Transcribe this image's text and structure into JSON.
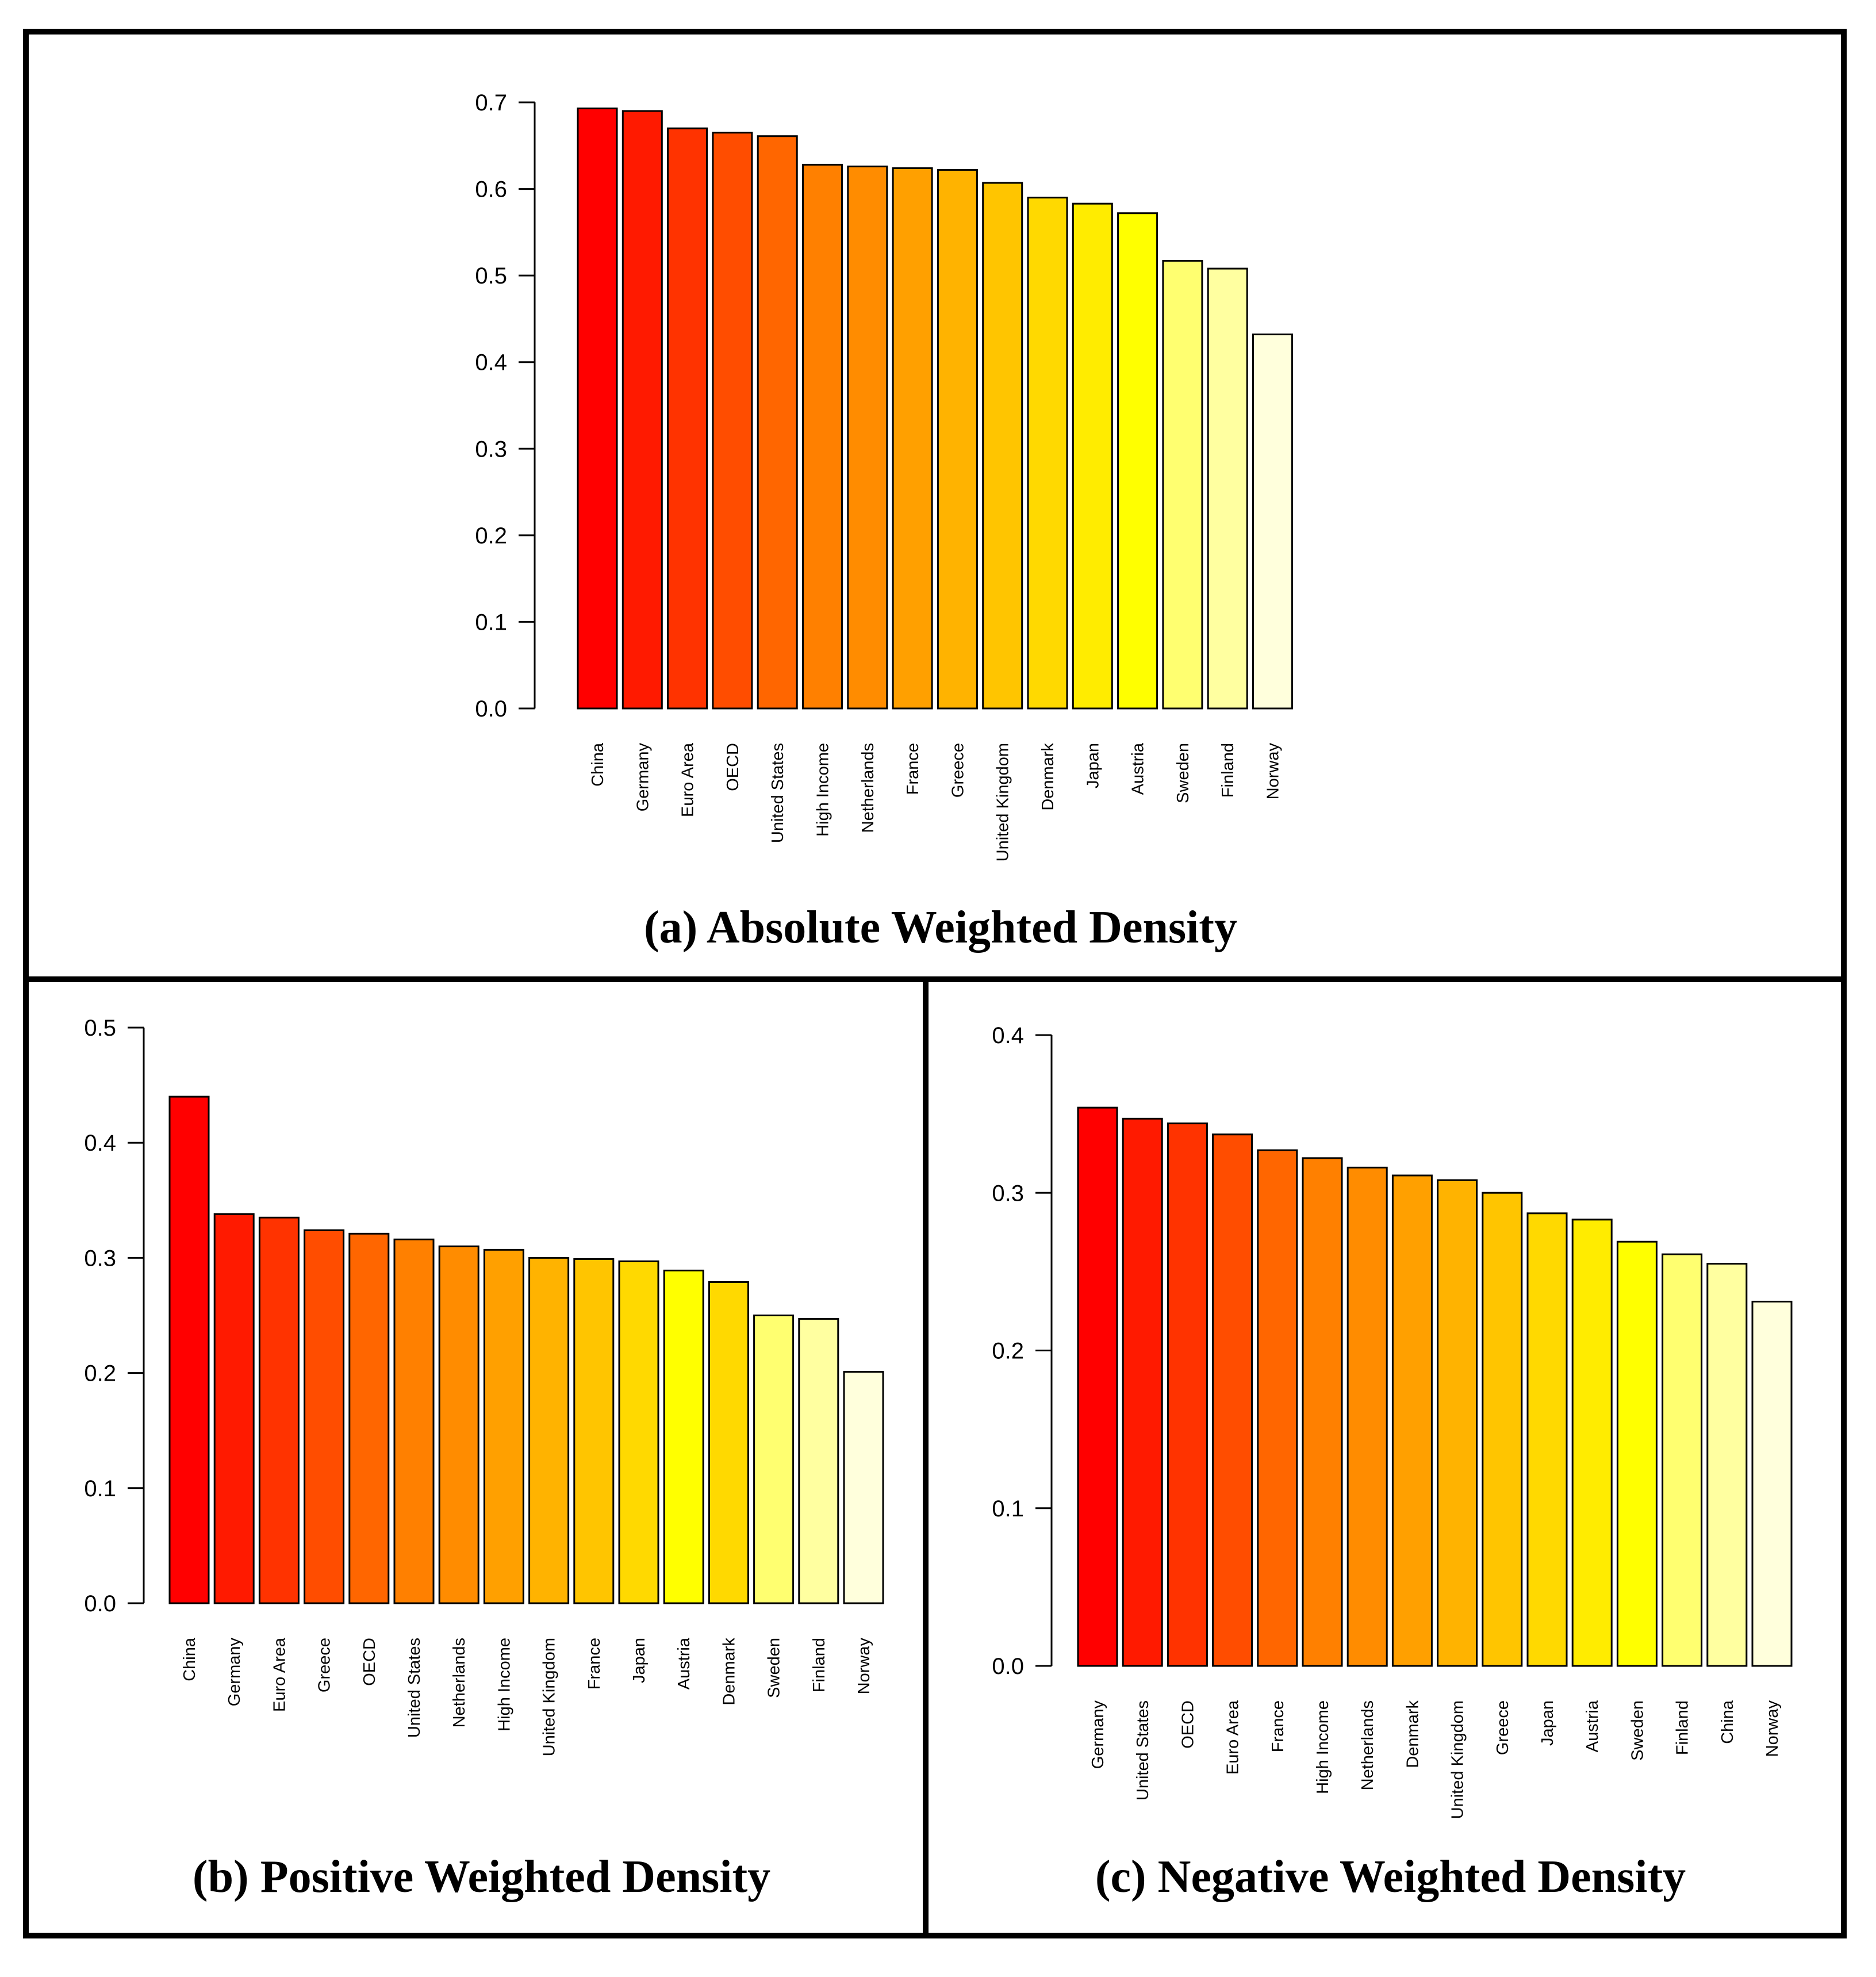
{
  "chart_data": [
    {
      "id": "a",
      "type": "bar",
      "title": "(a) Absolute Weighted Density",
      "categories": [
        "China",
        "Germany",
        "Euro Area",
        "OECD",
        "United States",
        "High Income",
        "Netherlands",
        "France",
        "Greece",
        "United Kingdom",
        "Denmark",
        "Japan",
        "Austria",
        "Sweden",
        "Finland",
        "Norway"
      ],
      "values": [
        0.693,
        0.69,
        0.67,
        0.665,
        0.661,
        0.628,
        0.626,
        0.624,
        0.622,
        0.607,
        0.59,
        0.583,
        0.572,
        0.517,
        0.508,
        0.432
      ],
      "colors": [
        "#FF0000",
        "#FF1A00",
        "#FF3300",
        "#FF4D00",
        "#FF6600",
        "#FF8000",
        "#FF8C00",
        "#FFA000",
        "#FFB300",
        "#FFC500",
        "#FFD900",
        "#FFEC00",
        "#FFFF00",
        "#FFFF70",
        "#FFFFA0",
        "#FFFFDC"
      ],
      "yticks": [
        0.0,
        0.1,
        0.2,
        0.3,
        0.4,
        0.5,
        0.6,
        0.7
      ],
      "ylim": [
        0,
        0.7
      ]
    },
    {
      "id": "b",
      "type": "bar",
      "title": "(b) Positive Weighted Density",
      "categories": [
        "China",
        "Germany",
        "Euro Area",
        "Greece",
        "OECD",
        "United States",
        "Netherlands",
        "High Income",
        "United Kingdom",
        "France",
        "Japan",
        "Austria",
        "Denmark",
        "Sweden",
        "Finland",
        "Norway"
      ],
      "values": [
        0.44,
        0.338,
        0.335,
        0.324,
        0.321,
        0.316,
        0.31,
        0.307,
        0.3,
        0.299,
        0.297,
        0.289,
        0.279,
        0.25,
        0.247,
        0.201
      ],
      "colors": [
        "#FF0000",
        "#FF1A00",
        "#FF3300",
        "#FF4D00",
        "#FF6600",
        "#FF8000",
        "#FF8C00",
        "#FFA000",
        "#FFB300",
        "#FFC500",
        "#FFD900",
        "#FFFF00",
        "#FFD900",
        "#FFFF70",
        "#FFFFA0",
        "#FFFFDC"
      ],
      "yticks": [
        0.0,
        0.1,
        0.2,
        0.3,
        0.4,
        0.5
      ],
      "ylim": [
        0,
        0.5
      ]
    },
    {
      "id": "c",
      "type": "bar",
      "title": "(c) Negative Weighted Density",
      "categories": [
        "Germany",
        "United States",
        "OECD",
        "Euro Area",
        "France",
        "High Income",
        "Netherlands",
        "Denmark",
        "United Kingdom",
        "Greece",
        "Japan",
        "Austria",
        "Sweden",
        "Finland",
        "China",
        "Norway"
      ],
      "values": [
        0.354,
        0.347,
        0.344,
        0.337,
        0.327,
        0.322,
        0.316,
        0.311,
        0.308,
        0.3,
        0.287,
        0.283,
        0.269,
        0.261,
        0.255,
        0.231
      ],
      "colors": [
        "#FF0000",
        "#FF1A00",
        "#FF3300",
        "#FF4D00",
        "#FF6600",
        "#FF8000",
        "#FF8C00",
        "#FFA000",
        "#FFB300",
        "#FFC500",
        "#FFD900",
        "#FFEC00",
        "#FFFF00",
        "#FFFF70",
        "#FFFFA0",
        "#FFFFDC"
      ],
      "yticks": [
        0.0,
        0.1,
        0.2,
        0.3,
        0.4
      ],
      "ylim": [
        0,
        0.4
      ]
    }
  ]
}
